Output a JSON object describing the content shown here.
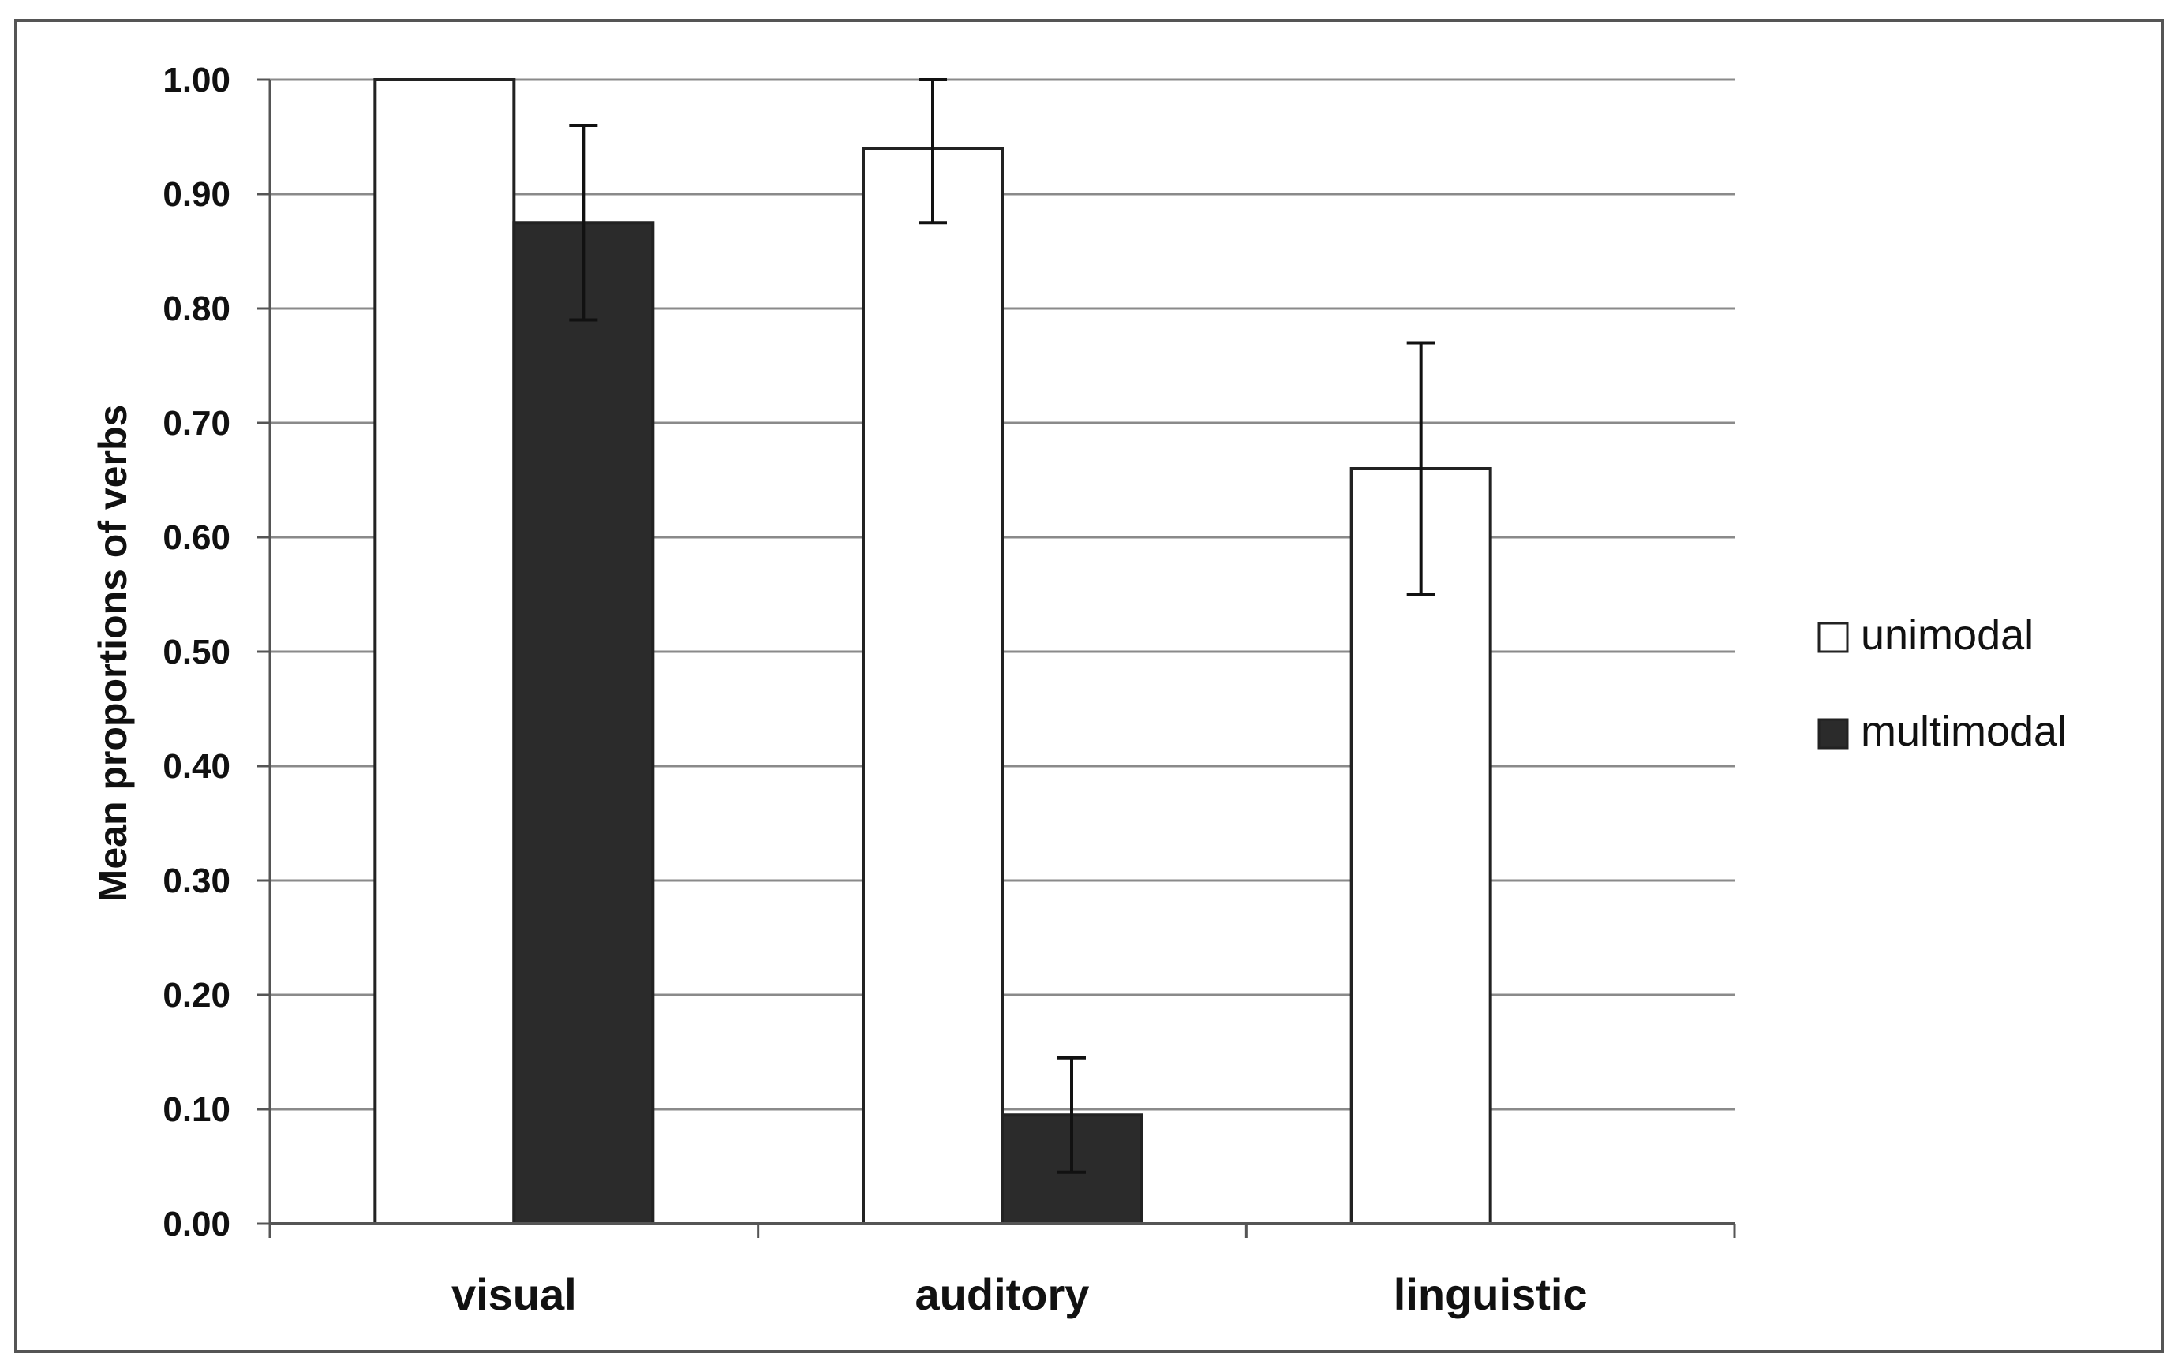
{
  "chart_data": {
    "type": "bar",
    "ylabel": "Mean proportions of verbs",
    "xlabel": "",
    "categories": [
      "visual",
      "auditory",
      "linguistic"
    ],
    "ylim": [
      0,
      1
    ],
    "yticks": [
      "0.00",
      "0.10",
      "0.20",
      "0.30",
      "0.40",
      "0.50",
      "0.60",
      "0.70",
      "0.80",
      "0.90",
      "1.00"
    ],
    "grid": true,
    "legend_position": "right",
    "series": [
      {
        "name": "unimodal",
        "color": "#ffffff",
        "values": [
          1.0,
          0.94,
          0.66
        ],
        "error": [
          0.0,
          0.065,
          0.11
        ]
      },
      {
        "name": "multimodal",
        "color": "#2b2b2b",
        "values": [
          0.875,
          0.095,
          0.0
        ],
        "error": [
          0.085,
          0.05,
          0.0
        ]
      }
    ]
  }
}
